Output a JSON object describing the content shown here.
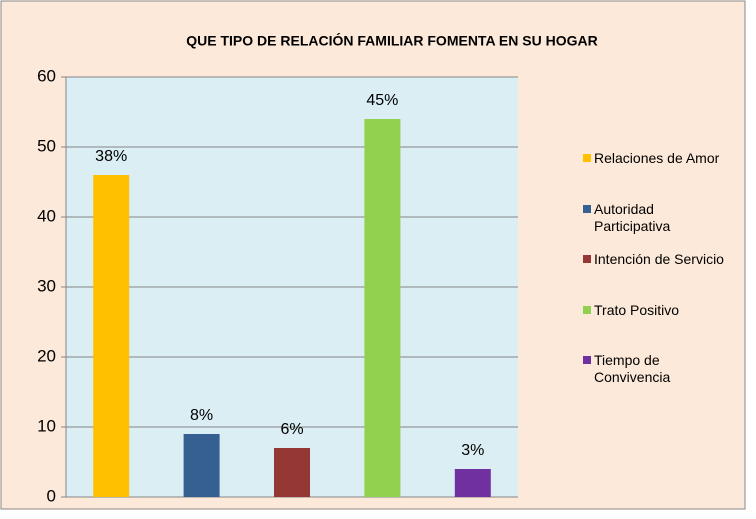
{
  "chart_data": {
    "type": "bar",
    "title": "QUE TIPO DE RELACIÓN FAMILIAR  FOMENTA  EN SU HOGAR",
    "categories": [
      "Relaciones de Amor",
      "Autoridad Participativa",
      "Intención de Servicio",
      "Trato Positivo",
      "Tiempo de Convivencia"
    ],
    "values": [
      46,
      9,
      7,
      54,
      4
    ],
    "value_labels": [
      "38%",
      "8%",
      "6%",
      "45%",
      "3%"
    ],
    "colors": [
      "#FFC000",
      "#376092",
      "#953735",
      "#92D050",
      "#7030A0"
    ],
    "ylim": [
      0,
      60
    ],
    "yticks": [
      0,
      10,
      20,
      30,
      40,
      50,
      60
    ],
    "grid": true,
    "legend": "right"
  }
}
